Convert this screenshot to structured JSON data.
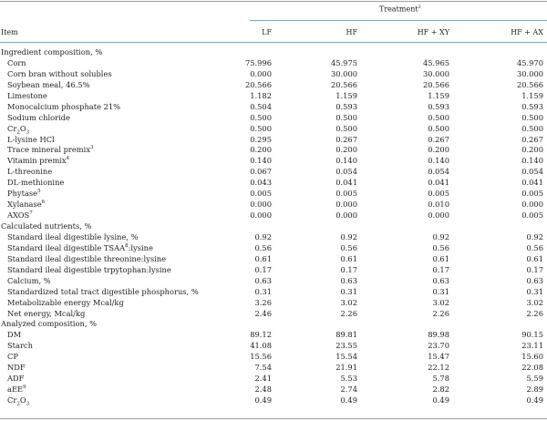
{
  "header": {
    "treatment": "Treatment",
    "treatment_sup": "2",
    "item": "Item",
    "columns": [
      "LF",
      "HF",
      "HF + XY",
      "HF + AX"
    ]
  },
  "rows": [
    {
      "label": "Ingredient composition, %",
      "section": true
    },
    {
      "label": "Corn",
      "values": [
        "75.996",
        "45.975",
        "45.965",
        "45.970"
      ]
    },
    {
      "label": "Corn bran without solubles",
      "values": [
        "0.000",
        "30.000",
        "30.000",
        "30.000"
      ]
    },
    {
      "label": "Soybean meal, 46.5%",
      "values": [
        "20.566",
        "20.566",
        "20.566",
        "20.566"
      ]
    },
    {
      "label": "Limestone",
      "values": [
        "1.182",
        "1.159",
        "1.159",
        "1.159"
      ]
    },
    {
      "label": "Monocalcium phosphate 21%",
      "values": [
        "0.504",
        "0.593",
        "0.593",
        "0.593"
      ]
    },
    {
      "label": "Sodium chloride",
      "values": [
        "0.500",
        "0.500",
        "0.500",
        "0.500"
      ]
    },
    {
      "label": "Cr",
      "sub": "2",
      "label2": "O",
      "sub2": "3",
      "values": [
        "0.500",
        "0.500",
        "0.500",
        "0.500"
      ]
    },
    {
      "label": "L-lysine HCl",
      "values": [
        "0.295",
        "0.267",
        "0.267",
        "0.267"
      ]
    },
    {
      "label": "Trace mineral premix",
      "sup": "3",
      "values": [
        "0.200",
        "0.200",
        "0.200",
        "0.200"
      ]
    },
    {
      "label": "Vitamin premix",
      "sup": "4",
      "values": [
        "0.140",
        "0.140",
        "0.140",
        "0.140"
      ]
    },
    {
      "label": "L-threonine",
      "values": [
        "0.067",
        "0.054",
        "0.054",
        "0.054"
      ]
    },
    {
      "label": "DL-methionine",
      "values": [
        "0.043",
        "0.041",
        "0.041",
        "0.041"
      ]
    },
    {
      "label": "Phytase",
      "sup": "5",
      "values": [
        "0.005",
        "0.005",
        "0.005",
        "0.005"
      ]
    },
    {
      "label": "Xylanase",
      "sup": "6",
      "values": [
        "0.000",
        "0.000",
        "0.010",
        "0.000"
      ]
    },
    {
      "label": "AXOS",
      "sup": "7",
      "values": [
        "0.000",
        "0.000",
        "0.000",
        "0.005"
      ]
    },
    {
      "label": "Calculated nutrients, %",
      "section": true
    },
    {
      "label": "Standard ileal digestible lysine, %",
      "values": [
        "0.92",
        "0.92",
        "0.92",
        "0.92"
      ]
    },
    {
      "label": "Standard ileal digestible TSAA",
      "sup": "8",
      "label2": ":lysine",
      "values": [
        "0.56",
        "0.56",
        "0.56",
        "0.56"
      ]
    },
    {
      "label": "Standard ileal digestible threonine:lysine",
      "values": [
        "0.61",
        "0.61",
        "0.61",
        "0.61"
      ]
    },
    {
      "label": "Standard ileal digestible trpytophan:lysine",
      "values": [
        "0.17",
        "0.17",
        "0.17",
        "0.17"
      ]
    },
    {
      "label": "Calcium, %",
      "values": [
        "0.63",
        "0.63",
        "0.63",
        "0.63"
      ]
    },
    {
      "label": "Standardized total tract digestible phosphorus, %",
      "values": [
        "0.31",
        "0.31",
        "0.31",
        "0.31"
      ]
    },
    {
      "label": "Metabolizable energy Mcal/kg",
      "values": [
        "3.26",
        "3.02",
        "3.02",
        "3.02"
      ]
    },
    {
      "label": "Net energy, Mcal/kg",
      "values": [
        "2.46",
        "2.26",
        "2.26",
        "2.26"
      ]
    },
    {
      "label": "Analyzed composition, %",
      "section": true
    },
    {
      "label": "DM",
      "values": [
        "89.12",
        "89.81",
        "89.98",
        "90.15"
      ]
    },
    {
      "label": "Starch",
      "values": [
        "41.08",
        "23.55",
        "23.70",
        "23.11"
      ]
    },
    {
      "label": "CP",
      "values": [
        "15.56",
        "15.54",
        "15.47",
        "15.60"
      ]
    },
    {
      "label": "NDF",
      "values": [
        "7.54",
        "21.91",
        "22.12",
        "22.08"
      ]
    },
    {
      "label": "ADF",
      "values": [
        "2.41",
        "5.53",
        "5.78",
        "5.59"
      ]
    },
    {
      "label": "aEE",
      "sup": "9",
      "values": [
        "2.48",
        "2.74",
        "2.82",
        "2.89"
      ]
    },
    {
      "label": "Cr",
      "sub": "2",
      "label2": "O",
      "sub2": "3",
      "values": [
        "0.49",
        "0.49",
        "0.49",
        "0.49"
      ]
    }
  ]
}
